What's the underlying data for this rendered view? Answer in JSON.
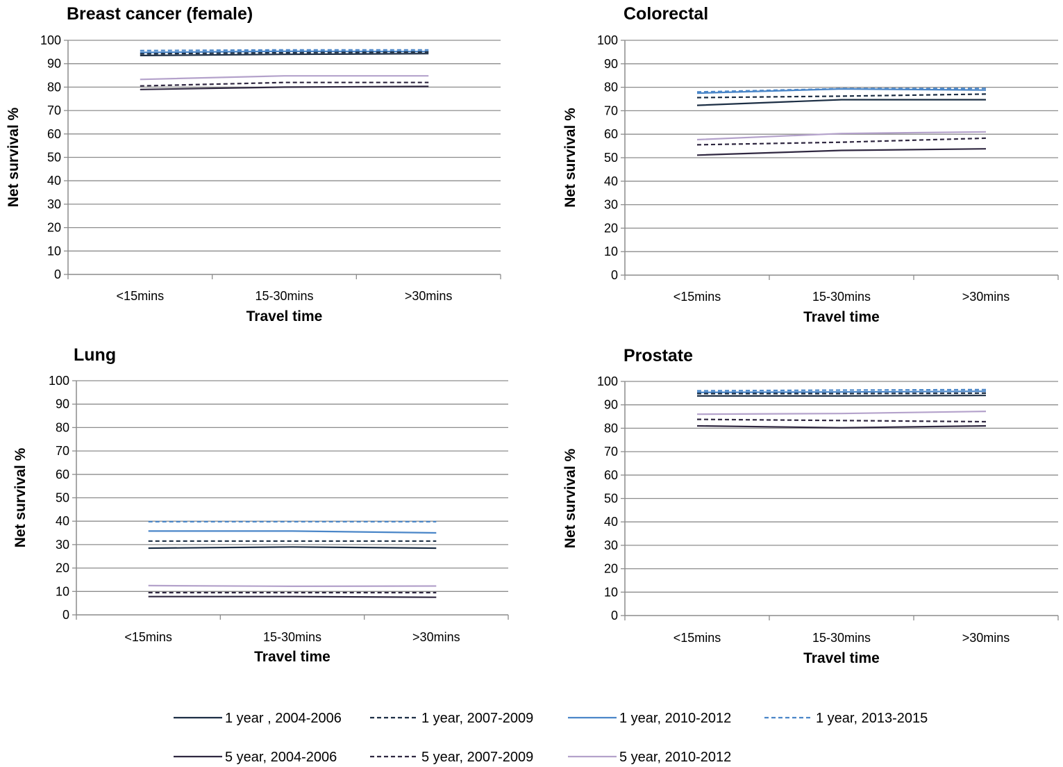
{
  "chart_data": [
    {
      "type": "line",
      "title": "Breast cancer (female)",
      "xlabel": "Travel time",
      "ylabel": "Net survival %",
      "categories": [
        "<15mins",
        "15-30mins",
        ">30mins"
      ],
      "ylim": [
        0,
        100
      ],
      "yticks": [
        "0",
        "10",
        "20",
        "30",
        "40",
        "50",
        "60",
        "70",
        "80",
        "90",
        "100"
      ],
      "grid": true,
      "series": [
        {
          "name": "1 year , 2004-2006",
          "values": [
            93.5,
            94.0,
            94.3
          ]
        },
        {
          "name": "1 year, 2007-2009",
          "values": [
            94.2,
            94.7,
            95.0
          ]
        },
        {
          "name": "1 year, 2010-2012",
          "values": [
            94.8,
            95.3,
            95.2
          ]
        },
        {
          "name": "1 year, 2013-2015",
          "values": [
            95.6,
            95.9,
            95.9
          ]
        },
        {
          "name": "5 year, 2004-2006",
          "values": [
            79.0,
            80.0,
            80.3
          ]
        },
        {
          "name": "5 year, 2007-2009",
          "values": [
            80.5,
            82.0,
            82.0
          ]
        },
        {
          "name": "5 year, 2010-2012",
          "values": [
            83.3,
            84.8,
            84.8
          ]
        }
      ]
    },
    {
      "type": "line",
      "title": "Colorectal",
      "xlabel": "Travel time",
      "ylabel": "Net survival %",
      "categories": [
        "<15mins",
        "15-30mins",
        ">30mins"
      ],
      "ylim": [
        0,
        100
      ],
      "yticks": [
        "0",
        "10",
        "20",
        "30",
        "40",
        "50",
        "60",
        "70",
        "80",
        "90",
        "100"
      ],
      "grid": true,
      "series": [
        {
          "name": "1 year , 2004-2006",
          "values": [
            72.3,
            74.7,
            74.7
          ]
        },
        {
          "name": "1 year, 2007-2009",
          "values": [
            75.6,
            76.2,
            77.1
          ]
        },
        {
          "name": "1 year, 2010-2012",
          "values": [
            77.5,
            79.3,
            78.8
          ]
        },
        {
          "name": "1 year, 2013-2015",
          "values": [
            78.0,
            79.4,
            79.5
          ]
        },
        {
          "name": "5 year, 2004-2006",
          "values": [
            51.1,
            53.1,
            53.8
          ]
        },
        {
          "name": "5 year, 2007-2009",
          "values": [
            55.5,
            56.6,
            58.3
          ]
        },
        {
          "name": "5 year, 2010-2012",
          "values": [
            57.7,
            60.3,
            61.0
          ]
        }
      ]
    },
    {
      "type": "line",
      "title": "Lung",
      "xlabel": "Travel time",
      "ylabel": "Net survival %",
      "categories": [
        "<15mins",
        "15-30mins",
        ">30mins"
      ],
      "ylim": [
        0,
        100
      ],
      "yticks": [
        "0",
        "10",
        "20",
        "30",
        "40",
        "50",
        "60",
        "70",
        "80",
        "90",
        "100"
      ],
      "grid": true,
      "series": [
        {
          "name": "1 year , 2004-2006",
          "values": [
            28.5,
            29.0,
            28.5
          ]
        },
        {
          "name": "1 year, 2007-2009",
          "values": [
            31.5,
            31.5,
            31.5
          ]
        },
        {
          "name": "1 year, 2010-2012",
          "values": [
            35.8,
            35.8,
            35.0
          ]
        },
        {
          "name": "1 year, 2013-2015",
          "values": [
            39.8,
            39.8,
            39.8
          ]
        },
        {
          "name": "5 year, 2004-2006",
          "values": [
            7.8,
            7.8,
            7.5
          ]
        },
        {
          "name": "5 year, 2007-2009",
          "values": [
            9.5,
            9.5,
            9.5
          ]
        },
        {
          "name": "5 year, 2010-2012",
          "values": [
            12.5,
            12.2,
            12.3
          ]
        }
      ]
    },
    {
      "type": "line",
      "title": "Prostate",
      "xlabel": "Travel time",
      "ylabel": "Net survival %",
      "categories": [
        "<15mins",
        "15-30mins",
        ">30mins"
      ],
      "ylim": [
        0,
        100
      ],
      "yticks": [
        "0",
        "10",
        "20",
        "30",
        "40",
        "50",
        "60",
        "70",
        "80",
        "90",
        "100"
      ],
      "grid": true,
      "series": [
        {
          "name": "1 year , 2004-2006",
          "values": [
            93.8,
            93.8,
            94.0
          ]
        },
        {
          "name": "1 year, 2007-2009",
          "values": [
            94.8,
            94.8,
            95.0
          ]
        },
        {
          "name": "1 year, 2010-2012",
          "values": [
            95.3,
            95.5,
            95.8
          ]
        },
        {
          "name": "1 year, 2013-2015",
          "values": [
            96.0,
            96.3,
            96.5
          ]
        },
        {
          "name": "5 year, 2004-2006",
          "values": [
            81.0,
            80.2,
            81.0
          ]
        },
        {
          "name": "5 year, 2007-2009",
          "values": [
            83.8,
            83.3,
            82.8
          ]
        },
        {
          "name": "5 year, 2010-2012",
          "values": [
            86.0,
            86.3,
            87.2
          ]
        }
      ]
    }
  ],
  "legend": {
    "placement": "bottom",
    "items": [
      {
        "label": "1 year , 2004-2006",
        "color": "#1c2e44",
        "dash": false
      },
      {
        "label": "1 year, 2007-2009",
        "color": "#1c2e44",
        "dash": true
      },
      {
        "label": "1 year, 2010-2012",
        "color": "#4a86c8",
        "dash": false
      },
      {
        "label": "1 year, 2013-2015",
        "color": "#4a86c8",
        "dash": true
      },
      {
        "label": "5 year, 2004-2006",
        "color": "#2f2740",
        "dash": false
      },
      {
        "label": "5 year, 2007-2009",
        "color": "#2f2740",
        "dash": true
      },
      {
        "label": "5 year, 2010-2012",
        "color": "#b4a2cb",
        "dash": false
      }
    ]
  },
  "colors": {
    "grid": "#8c8c8c",
    "axis": "#8c8c8c"
  }
}
